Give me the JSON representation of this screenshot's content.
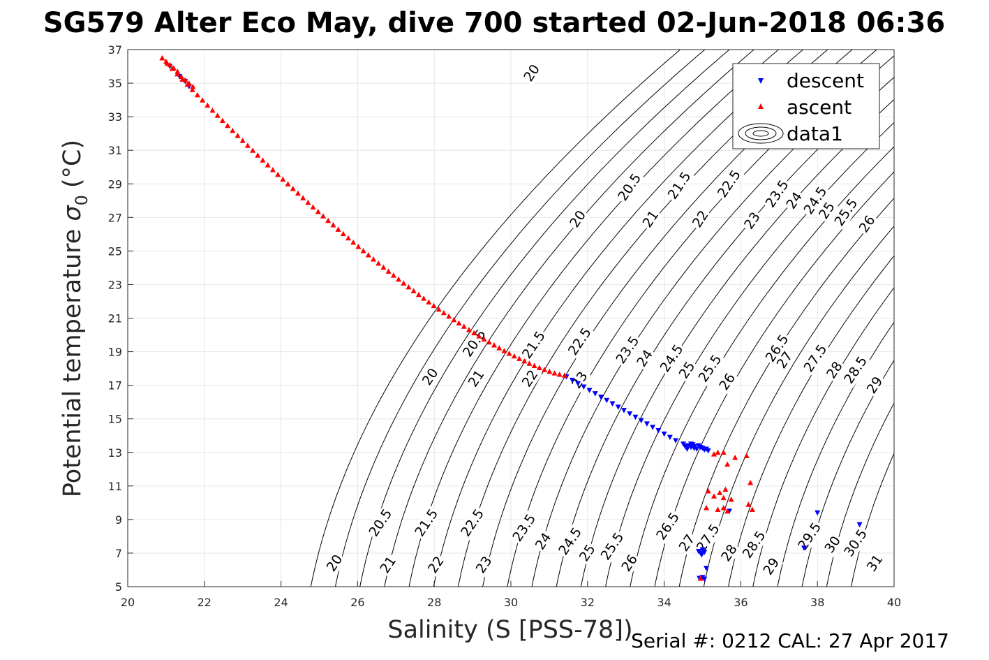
{
  "chart_data": {
    "type": "scatter",
    "title": "SG579 Alter Eco May, dive 700 started 02-Jun-2018 06:36",
    "xlabel": "Salinity (S [PSS-78])",
    "ylabel": "Potential temperature",
    "ylabel_symbol": "σ",
    "ylabel_subscript": "0",
    "ylabel_unit": "(°C)",
    "xlim": [
      20,
      40
    ],
    "ylim": [
      5,
      37
    ],
    "xticks": [
      20,
      22,
      24,
      26,
      28,
      30,
      32,
      34,
      36,
      38,
      40
    ],
    "yticks": [
      5,
      7,
      9,
      11,
      13,
      15,
      17,
      19,
      21,
      23,
      25,
      27,
      29,
      31,
      33,
      35,
      37
    ],
    "grid": true,
    "legend_position": "top-right",
    "legend": [
      "descent",
      "ascent",
      "data1"
    ],
    "footer": "Serial #: 0212  CAL: 27 Apr 2017",
    "contour_levels": [
      20,
      20.5,
      21,
      21.5,
      22,
      22.5,
      23,
      23.5,
      24,
      24.5,
      25,
      25.5,
      26,
      26.5,
      27,
      27.5,
      28,
      28.5,
      29,
      29.5,
      30,
      30.5,
      31
    ],
    "contour_labels": [
      {
        "text": "20",
        "x": 30.55,
        "y": 35.6
      },
      {
        "text": "20",
        "x": 31.75,
        "y": 26.9
      },
      {
        "text": "20.5",
        "x": 33.1,
        "y": 28.8
      },
      {
        "text": "21",
        "x": 33.65,
        "y": 26.9
      },
      {
        "text": "21.5",
        "x": 34.4,
        "y": 28.9
      },
      {
        "text": "22",
        "x": 34.95,
        "y": 26.9
      },
      {
        "text": "22.5",
        "x": 35.7,
        "y": 29.0
      },
      {
        "text": "23",
        "x": 36.3,
        "y": 26.8
      },
      {
        "text": "23.5",
        "x": 36.95,
        "y": 28.4
      },
      {
        "text": "24",
        "x": 37.4,
        "y": 28.0
      },
      {
        "text": "24.5",
        "x": 37.95,
        "y": 28.0
      },
      {
        "text": "25",
        "x": 38.25,
        "y": 27.4
      },
      {
        "text": "25.5",
        "x": 38.75,
        "y": 27.3
      },
      {
        "text": "26",
        "x": 39.3,
        "y": 26.6
      },
      {
        "text": "20",
        "x": 27.9,
        "y": 17.5
      },
      {
        "text": "20.5",
        "x": 29.05,
        "y": 19.5
      },
      {
        "text": "21",
        "x": 29.1,
        "y": 17.4
      },
      {
        "text": "21.5",
        "x": 30.6,
        "y": 19.4
      },
      {
        "text": "22",
        "x": 30.5,
        "y": 17.4
      },
      {
        "text": "22.5",
        "x": 31.8,
        "y": 19.6
      },
      {
        "text": "23",
        "x": 31.8,
        "y": 17.3
      },
      {
        "text": "23.5",
        "x": 33.05,
        "y": 19.1
      },
      {
        "text": "24",
        "x": 33.5,
        "y": 18.6
      },
      {
        "text": "24.5",
        "x": 34.2,
        "y": 18.6
      },
      {
        "text": "25",
        "x": 34.6,
        "y": 17.9
      },
      {
        "text": "25.5",
        "x": 35.2,
        "y": 18.0
      },
      {
        "text": "26",
        "x": 35.65,
        "y": 17.2
      },
      {
        "text": "26.5",
        "x": 36.95,
        "y": 19.2
      },
      {
        "text": "27",
        "x": 37.15,
        "y": 18.5
      },
      {
        "text": "27.5",
        "x": 37.95,
        "y": 18.6
      },
      {
        "text": "28",
        "x": 38.45,
        "y": 17.9
      },
      {
        "text": "28.5",
        "x": 39.0,
        "y": 17.9
      },
      {
        "text": "29",
        "x": 39.5,
        "y": 17.0
      },
      {
        "text": "20",
        "x": 25.4,
        "y": 6.4
      },
      {
        "text": "20.5",
        "x": 26.6,
        "y": 8.8
      },
      {
        "text": "21",
        "x": 26.8,
        "y": 6.3
      },
      {
        "text": "21.5",
        "x": 27.8,
        "y": 8.8
      },
      {
        "text": "22",
        "x": 28.05,
        "y": 6.3
      },
      {
        "text": "22.5",
        "x": 29.0,
        "y": 8.8
      },
      {
        "text": "23",
        "x": 29.3,
        "y": 6.3
      },
      {
        "text": "23.5",
        "x": 30.35,
        "y": 8.5
      },
      {
        "text": "24",
        "x": 30.85,
        "y": 7.7
      },
      {
        "text": "24.5",
        "x": 31.55,
        "y": 7.7
      },
      {
        "text": "25",
        "x": 32.0,
        "y": 7.0
      },
      {
        "text": "25.5",
        "x": 32.65,
        "y": 7.4
      },
      {
        "text": "26",
        "x": 33.1,
        "y": 6.4
      },
      {
        "text": "26.5",
        "x": 34.1,
        "y": 8.6
      },
      {
        "text": "27",
        "x": 34.6,
        "y": 7.6
      },
      {
        "text": "27.5",
        "x": 35.15,
        "y": 7.9
      },
      {
        "text": "28",
        "x": 35.7,
        "y": 7.0
      },
      {
        "text": "28.5",
        "x": 36.35,
        "y": 7.5
      },
      {
        "text": "29",
        "x": 36.8,
        "y": 6.2
      },
      {
        "text": "29.5",
        "x": 37.8,
        "y": 8.0
      },
      {
        "text": "30",
        "x": 38.4,
        "y": 7.5
      },
      {
        "text": "30.5",
        "x": 39.0,
        "y": 7.6
      },
      {
        "text": "31",
        "x": 39.5,
        "y": 6.4
      }
    ],
    "series": [
      {
        "name": "descent",
        "marker": "triangle-down",
        "color": "#0000ff",
        "points": [
          [
            21.1,
            36.0
          ],
          [
            21.35,
            35.4
          ],
          [
            21.5,
            35.1
          ],
          [
            21.6,
            34.8
          ],
          [
            31.45,
            17.5
          ],
          [
            31.6,
            17.3
          ],
          [
            31.75,
            17.1
          ],
          [
            31.9,
            16.9
          ],
          [
            32.05,
            16.7
          ],
          [
            32.2,
            16.5
          ],
          [
            32.35,
            16.3
          ],
          [
            32.5,
            16.1
          ],
          [
            32.65,
            15.9
          ],
          [
            32.8,
            15.7
          ],
          [
            32.95,
            15.5
          ],
          [
            33.1,
            15.3
          ],
          [
            33.25,
            15.1
          ],
          [
            33.4,
            14.9
          ],
          [
            33.55,
            14.7
          ],
          [
            33.7,
            14.5
          ],
          [
            33.85,
            14.3
          ],
          [
            34.0,
            14.1
          ],
          [
            34.15,
            13.9
          ],
          [
            34.3,
            13.7
          ],
          [
            34.5,
            13.5
          ],
          [
            34.55,
            13.35
          ],
          [
            34.62,
            13.4
          ],
          [
            34.7,
            13.3
          ],
          [
            34.75,
            13.45
          ],
          [
            34.8,
            13.35
          ],
          [
            34.85,
            13.2
          ],
          [
            34.9,
            13.4
          ],
          [
            34.95,
            13.3
          ],
          [
            35.0,
            13.25
          ],
          [
            35.05,
            13.15
          ],
          [
            35.1,
            13.2
          ],
          [
            35.15,
            13.1
          ],
          [
            34.6,
            13.2
          ],
          [
            34.7,
            13.5
          ],
          [
            34.78,
            13.25
          ],
          [
            35.0,
            7.2
          ],
          [
            34.95,
            7.0
          ],
          [
            34.9,
            7.1
          ],
          [
            35.05,
            7.05
          ],
          [
            34.98,
            6.9
          ],
          [
            35.1,
            6.1
          ],
          [
            35.0,
            5.55
          ],
          [
            34.92,
            5.5
          ],
          [
            35.05,
            5.45
          ],
          [
            35.7,
            9.5
          ],
          [
            38.0,
            9.4
          ],
          [
            39.1,
            8.7
          ],
          [
            37.65,
            7.3
          ]
        ]
      },
      {
        "name": "ascent",
        "marker": "triangle-up",
        "color": "#ff0000",
        "points": [
          [
            20.9,
            36.5
          ],
          [
            21.0,
            36.3
          ],
          [
            21.1,
            36.1
          ],
          [
            21.2,
            35.9
          ],
          [
            21.3,
            35.7
          ],
          [
            21.4,
            35.4
          ],
          [
            21.5,
            35.2
          ],
          [
            21.6,
            35.0
          ],
          [
            21.7,
            34.8
          ],
          [
            35.3,
            12.9
          ],
          [
            35.4,
            13.0
          ],
          [
            35.55,
            13.0
          ],
          [
            35.65,
            12.3
          ],
          [
            35.85,
            12.7
          ],
          [
            36.15,
            12.8
          ],
          [
            36.25,
            11.2
          ],
          [
            35.15,
            10.7
          ],
          [
            35.3,
            10.4
          ],
          [
            35.45,
            10.6
          ],
          [
            35.6,
            10.8
          ],
          [
            35.55,
            10.3
          ],
          [
            35.75,
            10.2
          ],
          [
            35.1,
            9.7
          ],
          [
            35.4,
            9.6
          ],
          [
            35.55,
            9.7
          ],
          [
            35.65,
            9.5
          ],
          [
            36.2,
            9.9
          ],
          [
            36.3,
            9.6
          ],
          [
            34.95,
            5.5
          ]
        ]
      }
    ]
  }
}
